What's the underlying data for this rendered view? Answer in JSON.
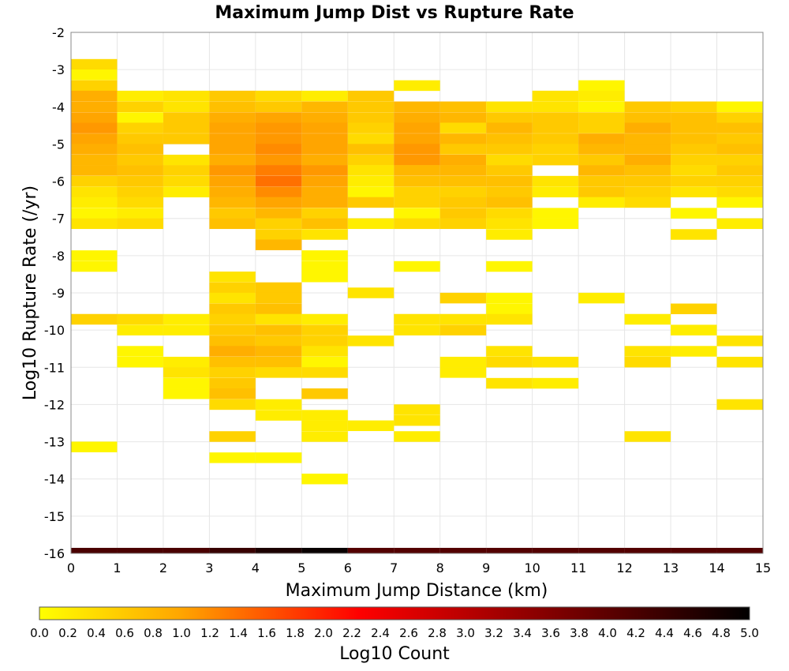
{
  "chart_data": {
    "type": "heatmap",
    "title": "Maximum Jump Dist vs Rupture Rate",
    "xlabel": "Maximum Jump Distance (km)",
    "ylabel": "Log10 Rupture Rate (/yr)",
    "xlim": [
      0,
      15
    ],
    "ylim": [
      -16,
      -2
    ],
    "x_ticks": [
      0,
      1,
      2,
      3,
      4,
      5,
      6,
      7,
      8,
      9,
      10,
      11,
      12,
      13,
      14,
      15
    ],
    "y_ticks": [
      -2,
      -3,
      -4,
      -5,
      -6,
      -7,
      -8,
      -9,
      -10,
      -11,
      -12,
      -13,
      -14,
      -15,
      -16
    ],
    "x_bin_width": 1,
    "y_bin_height": 0.2857,
    "grid": true,
    "colorbar": {
      "label": "Log10 Count",
      "range": [
        0.0,
        5.0
      ],
      "ticks": [
        "0.0",
        "0.2",
        "0.4",
        "0.6",
        "0.8",
        "1.0",
        "1.2",
        "1.4",
        "1.6",
        "1.8",
        "2.0",
        "2.2",
        "2.4",
        "2.6",
        "2.8",
        "3.0",
        "3.2",
        "3.4",
        "3.6",
        "3.8",
        "4.0",
        "4.2",
        "4.4",
        "4.6",
        "4.8",
        "5.0"
      ],
      "colors": [
        "#ffff00",
        "#ffa500",
        "#ff0000",
        "#000000"
      ]
    },
    "cells": [
      [
        0,
        -2.86,
        0.4
      ],
      [
        0,
        -3.14,
        0.1
      ],
      [
        0,
        -3.43,
        0.5
      ],
      [
        0,
        -3.71,
        0.9
      ],
      [
        0,
        -4.0,
        0.9
      ],
      [
        0,
        -4.29,
        1.0
      ],
      [
        0,
        -4.57,
        1.1
      ],
      [
        0,
        -4.86,
        1.0
      ],
      [
        0,
        -5.14,
        0.9
      ],
      [
        0,
        -5.43,
        0.8
      ],
      [
        0,
        -5.71,
        0.8
      ],
      [
        0,
        -6.0,
        0.5
      ],
      [
        0,
        -6.29,
        0.3
      ],
      [
        0,
        -6.57,
        0.2
      ],
      [
        0,
        -6.86,
        0.1
      ],
      [
        0,
        -7.14,
        0.3
      ],
      [
        0,
        -8.0,
        0.1
      ],
      [
        0,
        -8.29,
        0.1
      ],
      [
        0,
        -9.71,
        0.5
      ],
      [
        0,
        -13.14,
        0.1
      ],
      [
        0,
        -16.0,
        4.2
      ],
      [
        1,
        -3.71,
        0.2
      ],
      [
        1,
        -4.0,
        0.5
      ],
      [
        1,
        -4.29,
        0.1
      ],
      [
        1,
        -4.57,
        0.5
      ],
      [
        1,
        -4.86,
        0.6
      ],
      [
        1,
        -5.14,
        0.7
      ],
      [
        1,
        -5.43,
        0.6
      ],
      [
        1,
        -5.71,
        0.7
      ],
      [
        1,
        -6.0,
        0.6
      ],
      [
        1,
        -6.29,
        0.5
      ],
      [
        1,
        -6.57,
        0.4
      ],
      [
        1,
        -6.86,
        0.2
      ],
      [
        1,
        -7.14,
        0.4
      ],
      [
        1,
        -9.71,
        0.4
      ],
      [
        1,
        -10.0,
        0.2
      ],
      [
        1,
        -10.57,
        0.1
      ],
      [
        1,
        -10.86,
        0.1
      ],
      [
        1,
        -16.0,
        4.2
      ],
      [
        2,
        -3.71,
        0.3
      ],
      [
        2,
        -4.0,
        0.3
      ],
      [
        2,
        -4.29,
        0.6
      ],
      [
        2,
        -4.57,
        0.6
      ],
      [
        2,
        -4.86,
        0.6
      ],
      [
        2,
        -5.43,
        0.3
      ],
      [
        2,
        -5.71,
        0.5
      ],
      [
        2,
        -6.0,
        0.4
      ],
      [
        2,
        -6.29,
        0.2
      ],
      [
        2,
        -9.71,
        0.2
      ],
      [
        2,
        -10.0,
        0.2
      ],
      [
        2,
        -10.86,
        0.2
      ],
      [
        2,
        -11.14,
        0.3
      ],
      [
        2,
        -11.43,
        0.1
      ],
      [
        2,
        -11.71,
        0.1
      ],
      [
        2,
        -16.0,
        4.2
      ],
      [
        3,
        -3.71,
        0.6
      ],
      [
        3,
        -4.0,
        0.7
      ],
      [
        3,
        -4.29,
        0.9
      ],
      [
        3,
        -4.57,
        1.0
      ],
      [
        3,
        -4.86,
        1.0
      ],
      [
        3,
        -5.14,
        1.0
      ],
      [
        3,
        -5.43,
        0.9
      ],
      [
        3,
        -5.71,
        1.1
      ],
      [
        3,
        -6.0,
        1.0
      ],
      [
        3,
        -6.29,
        0.9
      ],
      [
        3,
        -6.57,
        0.8
      ],
      [
        3,
        -6.86,
        0.6
      ],
      [
        3,
        -7.14,
        0.7
      ],
      [
        3,
        -8.57,
        0.3
      ],
      [
        3,
        -8.86,
        0.5
      ],
      [
        3,
        -9.14,
        0.3
      ],
      [
        3,
        -9.43,
        0.6
      ],
      [
        3,
        -9.71,
        0.5
      ],
      [
        3,
        -10.0,
        0.6
      ],
      [
        3,
        -10.29,
        0.7
      ],
      [
        3,
        -10.57,
        0.9
      ],
      [
        3,
        -10.86,
        0.7
      ],
      [
        3,
        -11.14,
        0.5
      ],
      [
        3,
        -11.43,
        0.6
      ],
      [
        3,
        -11.71,
        0.7
      ],
      [
        3,
        -12.0,
        0.4
      ],
      [
        3,
        -12.86,
        0.5
      ],
      [
        3,
        -13.43,
        0.1
      ],
      [
        3,
        -16.0,
        4.4
      ],
      [
        4,
        -3.71,
        0.4
      ],
      [
        4,
        -4.0,
        0.6
      ],
      [
        4,
        -4.29,
        1.0
      ],
      [
        4,
        -4.57,
        1.1
      ],
      [
        4,
        -4.86,
        1.1
      ],
      [
        4,
        -5.14,
        1.2
      ],
      [
        4,
        -5.43,
        1.1
      ],
      [
        4,
        -5.71,
        1.3
      ],
      [
        4,
        -6.0,
        1.4
      ],
      [
        4,
        -6.29,
        1.2
      ],
      [
        4,
        -6.57,
        1.0
      ],
      [
        4,
        -6.86,
        0.8
      ],
      [
        4,
        -7.14,
        0.5
      ],
      [
        4,
        -7.43,
        0.5
      ],
      [
        4,
        -7.71,
        0.8
      ],
      [
        4,
        -8.86,
        0.6
      ],
      [
        4,
        -9.14,
        0.6
      ],
      [
        4,
        -9.43,
        0.7
      ],
      [
        4,
        -9.71,
        0.3
      ],
      [
        4,
        -10.0,
        0.7
      ],
      [
        4,
        -10.29,
        0.6
      ],
      [
        4,
        -10.57,
        0.8
      ],
      [
        4,
        -10.86,
        0.7
      ],
      [
        4,
        -11.14,
        0.4
      ],
      [
        4,
        -12.0,
        0.2
      ],
      [
        4,
        -12.29,
        0.2
      ],
      [
        4,
        -13.43,
        0.1
      ],
      [
        4,
        -16.0,
        4.7
      ],
      [
        5,
        -3.71,
        0.2
      ],
      [
        5,
        -4.0,
        0.8
      ],
      [
        5,
        -4.29,
        0.9
      ],
      [
        5,
        -4.57,
        1.0
      ],
      [
        5,
        -4.86,
        1.0
      ],
      [
        5,
        -5.14,
        1.0
      ],
      [
        5,
        -5.43,
        0.9
      ],
      [
        5,
        -5.71,
        1.1
      ],
      [
        5,
        -6.0,
        1.0
      ],
      [
        5,
        -6.29,
        0.9
      ],
      [
        5,
        -6.57,
        0.9
      ],
      [
        5,
        -6.86,
        0.5
      ],
      [
        5,
        -7.14,
        0.7
      ],
      [
        5,
        -7.43,
        0.3
      ],
      [
        5,
        -8.0,
        0.1
      ],
      [
        5,
        -8.29,
        0.1
      ],
      [
        5,
        -8.57,
        0.1
      ],
      [
        5,
        -9.71,
        0.2
      ],
      [
        5,
        -10.0,
        0.5
      ],
      [
        5,
        -10.29,
        0.5
      ],
      [
        5,
        -10.57,
        0.3
      ],
      [
        5,
        -10.86,
        0.1
      ],
      [
        5,
        -11.14,
        0.4
      ],
      [
        5,
        -11.71,
        0.6
      ],
      [
        5,
        -12.29,
        0.2
      ],
      [
        5,
        -12.57,
        0.2
      ],
      [
        5,
        -12.86,
        0.2
      ],
      [
        5,
        -14.0,
        0.1
      ],
      [
        5,
        -16.0,
        4.9
      ],
      [
        6,
        -3.71,
        0.6
      ],
      [
        6,
        -4.0,
        0.6
      ],
      [
        6,
        -4.29,
        0.6
      ],
      [
        6,
        -4.57,
        0.5
      ],
      [
        6,
        -4.86,
        0.4
      ],
      [
        6,
        -5.14,
        0.7
      ],
      [
        6,
        -5.43,
        0.5
      ],
      [
        6,
        -5.71,
        0.3
      ],
      [
        6,
        -6.0,
        0.2
      ],
      [
        6,
        -6.29,
        0.1
      ],
      [
        6,
        -6.57,
        0.6
      ],
      [
        6,
        -7.14,
        0.2
      ],
      [
        6,
        -9.0,
        0.3
      ],
      [
        6,
        -10.29,
        0.3
      ],
      [
        6,
        -12.57,
        0.2
      ],
      [
        6,
        -16.0,
        4.1
      ],
      [
        7,
        -3.43,
        0.2
      ],
      [
        7,
        -4.0,
        0.8
      ],
      [
        7,
        -4.29,
        0.9
      ],
      [
        7,
        -4.57,
        1.0
      ],
      [
        7,
        -4.86,
        1.0
      ],
      [
        7,
        -5.14,
        1.1
      ],
      [
        7,
        -5.43,
        1.1
      ],
      [
        7,
        -5.71,
        0.8
      ],
      [
        7,
        -6.0,
        0.7
      ],
      [
        7,
        -6.29,
        0.5
      ],
      [
        7,
        -6.57,
        0.5
      ],
      [
        7,
        -6.86,
        0.1
      ],
      [
        7,
        -7.14,
        0.4
      ],
      [
        7,
        -8.29,
        0.1
      ],
      [
        7,
        -9.71,
        0.3
      ],
      [
        7,
        -10.0,
        0.3
      ],
      [
        7,
        -12.14,
        0.3
      ],
      [
        7,
        -12.43,
        0.3
      ],
      [
        7,
        -12.86,
        0.2
      ],
      [
        7,
        -16.0,
        4.1
      ],
      [
        8,
        -4.0,
        0.7
      ],
      [
        8,
        -4.29,
        0.8
      ],
      [
        8,
        -4.57,
        0.4
      ],
      [
        8,
        -4.86,
        0.8
      ],
      [
        8,
        -5.14,
        0.6
      ],
      [
        8,
        -5.43,
        0.9
      ],
      [
        8,
        -5.71,
        0.8
      ],
      [
        8,
        -6.0,
        0.7
      ],
      [
        8,
        -6.29,
        0.5
      ],
      [
        8,
        -6.57,
        0.6
      ],
      [
        8,
        -6.86,
        0.6
      ],
      [
        8,
        -7.14,
        0.5
      ],
      [
        8,
        -9.14,
        0.5
      ],
      [
        8,
        -9.71,
        0.3
      ],
      [
        8,
        -10.0,
        0.5
      ],
      [
        8,
        -10.86,
        0.2
      ],
      [
        8,
        -11.14,
        0.2
      ],
      [
        8,
        -16.0,
        4.1
      ],
      [
        9,
        -4.0,
        0.3
      ],
      [
        9,
        -4.29,
        0.6
      ],
      [
        9,
        -4.57,
        0.8
      ],
      [
        9,
        -4.86,
        0.7
      ],
      [
        9,
        -5.14,
        0.6
      ],
      [
        9,
        -5.43,
        0.4
      ],
      [
        9,
        -5.71,
        0.6
      ],
      [
        9,
        -6.0,
        0.7
      ],
      [
        9,
        -6.29,
        0.6
      ],
      [
        9,
        -6.57,
        0.7
      ],
      [
        9,
        -6.86,
        0.4
      ],
      [
        9,
        -7.14,
        0.3
      ],
      [
        9,
        -7.43,
        0.2
      ],
      [
        9,
        -8.29,
        0.1
      ],
      [
        9,
        -9.14,
        0.1
      ],
      [
        9,
        -9.43,
        0.1
      ],
      [
        9,
        -9.71,
        0.3
      ],
      [
        9,
        -10.57,
        0.3
      ],
      [
        9,
        -10.86,
        0.4
      ],
      [
        9,
        -11.43,
        0.3
      ],
      [
        9,
        -16.0,
        4.1
      ],
      [
        10,
        -3.71,
        0.3
      ],
      [
        10,
        -4.0,
        0.3
      ],
      [
        10,
        -4.29,
        0.6
      ],
      [
        10,
        -4.57,
        0.6
      ],
      [
        10,
        -4.86,
        0.6
      ],
      [
        10,
        -5.14,
        0.5
      ],
      [
        10,
        -5.43,
        0.5
      ],
      [
        10,
        -6.0,
        0.3
      ],
      [
        10,
        -6.29,
        0.2
      ],
      [
        10,
        -6.86,
        0.1
      ],
      [
        10,
        -7.14,
        0.1
      ],
      [
        10,
        -10.86,
        0.3
      ],
      [
        10,
        -11.43,
        0.2
      ],
      [
        10,
        -16.0,
        4.1
      ],
      [
        11,
        -3.43,
        0.1
      ],
      [
        11,
        -3.71,
        0.2
      ],
      [
        11,
        -4.0,
        0.1
      ],
      [
        11,
        -4.29,
        0.5
      ],
      [
        11,
        -4.57,
        0.5
      ],
      [
        11,
        -4.86,
        0.9
      ],
      [
        11,
        -5.14,
        0.8
      ],
      [
        11,
        -5.43,
        0.6
      ],
      [
        11,
        -5.71,
        0.8
      ],
      [
        11,
        -6.0,
        0.6
      ],
      [
        11,
        -6.29,
        0.6
      ],
      [
        11,
        -6.57,
        0.2
      ],
      [
        11,
        -9.14,
        0.2
      ],
      [
        11,
        -16.0,
        4.1
      ],
      [
        12,
        -4.0,
        0.6
      ],
      [
        12,
        -4.29,
        0.7
      ],
      [
        12,
        -4.57,
        0.9
      ],
      [
        12,
        -4.86,
        0.8
      ],
      [
        12,
        -5.14,
        0.8
      ],
      [
        12,
        -5.43,
        0.9
      ],
      [
        12,
        -5.71,
        0.7
      ],
      [
        12,
        -6.0,
        0.6
      ],
      [
        12,
        -6.29,
        0.5
      ],
      [
        12,
        -6.57,
        0.4
      ],
      [
        12,
        -9.71,
        0.2
      ],
      [
        12,
        -10.57,
        0.3
      ],
      [
        12,
        -10.86,
        0.4
      ],
      [
        12,
        -12.86,
        0.3
      ],
      [
        12,
        -16.0,
        4.1
      ],
      [
        13,
        -4.0,
        0.5
      ],
      [
        13,
        -4.29,
        0.7
      ],
      [
        13,
        -4.57,
        0.7
      ],
      [
        13,
        -4.86,
        0.7
      ],
      [
        13,
        -5.14,
        0.6
      ],
      [
        13,
        -5.43,
        0.5
      ],
      [
        13,
        -5.71,
        0.4
      ],
      [
        13,
        -6.0,
        0.5
      ],
      [
        13,
        -6.29,
        0.3
      ],
      [
        13,
        -6.86,
        0.1
      ],
      [
        13,
        -7.43,
        0.3
      ],
      [
        13,
        -9.43,
        0.5
      ],
      [
        13,
        -10.0,
        0.2
      ],
      [
        13,
        -10.57,
        0.2
      ],
      [
        13,
        -16.0,
        4.1
      ],
      [
        14,
        -4.0,
        0.1
      ],
      [
        14,
        -4.29,
        0.5
      ],
      [
        14,
        -4.57,
        0.7
      ],
      [
        14,
        -4.86,
        0.6
      ],
      [
        14,
        -5.14,
        0.7
      ],
      [
        14,
        -5.43,
        0.5
      ],
      [
        14,
        -5.71,
        0.6
      ],
      [
        14,
        -6.0,
        0.5
      ],
      [
        14,
        -6.29,
        0.4
      ],
      [
        14,
        -6.57,
        0.1
      ],
      [
        14,
        -7.14,
        0.2
      ],
      [
        14,
        -10.29,
        0.3
      ],
      [
        14,
        -10.86,
        0.3
      ],
      [
        14,
        -12.0,
        0.3
      ],
      [
        14,
        -16.0,
        4.1
      ]
    ]
  }
}
